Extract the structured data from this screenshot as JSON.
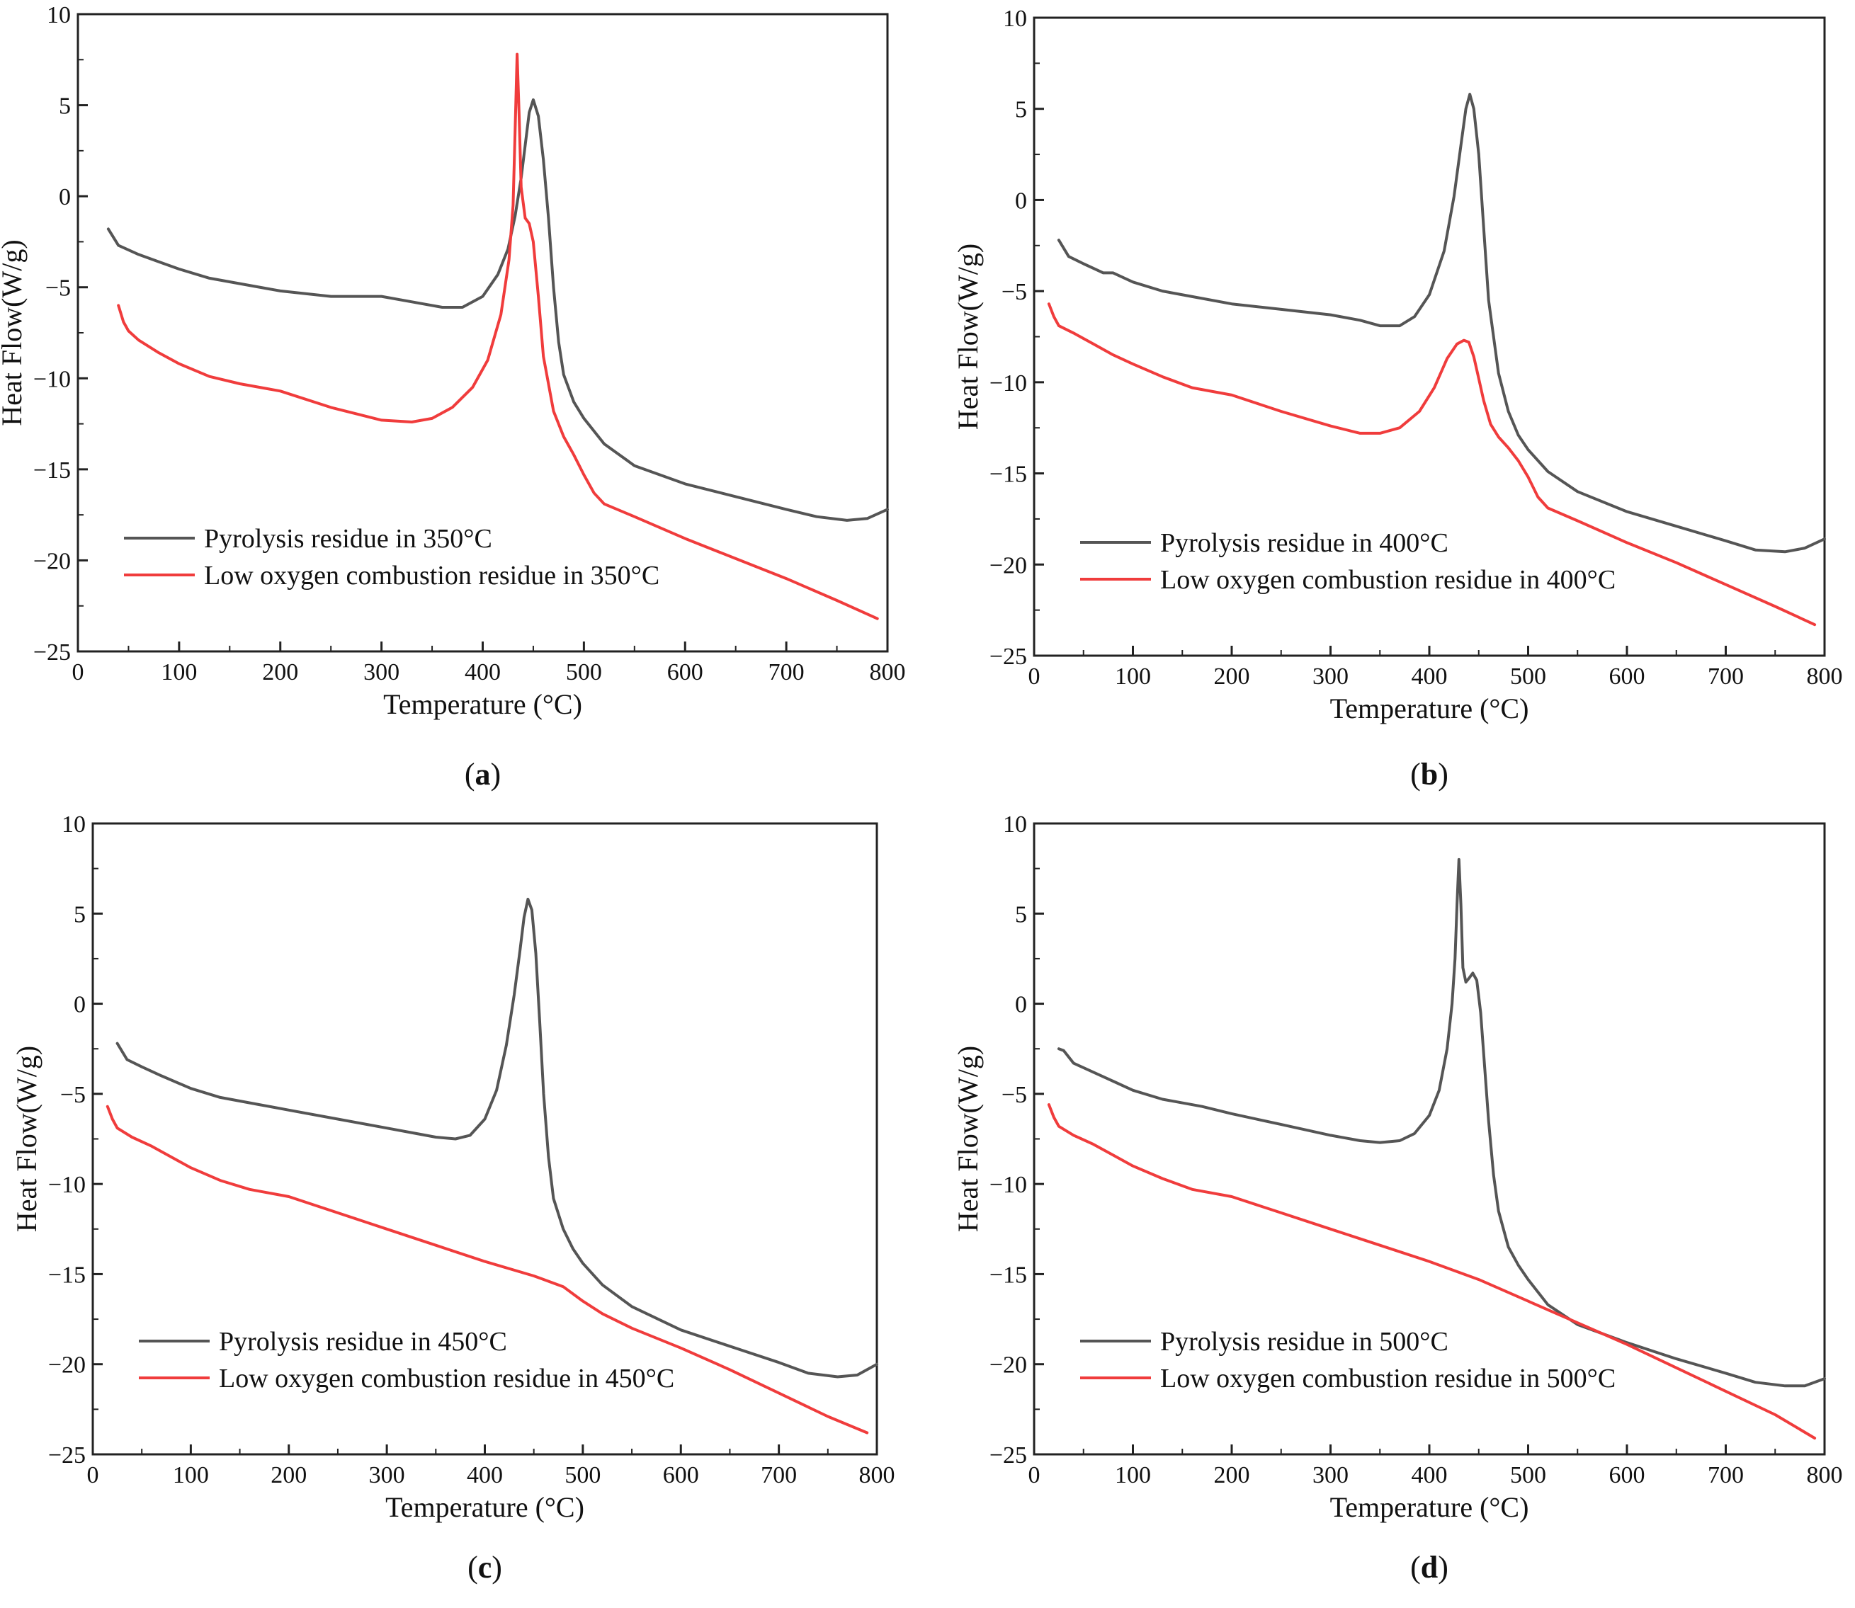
{
  "chart_data": [
    {
      "type": "line",
      "panel_label": "a",
      "xlabel": "Temperature (°C)",
      "ylabel": "Heat Flow(W/g)",
      "xlim": [
        0,
        800
      ],
      "ylim": [
        -25,
        10
      ],
      "xticks": [
        "0",
        "100",
        "200",
        "300",
        "400",
        "500",
        "600",
        "700",
        "800"
      ],
      "yticks": [
        "10",
        "5",
        "0",
        "−5",
        "−10",
        "−15",
        "−20",
        "−25"
      ],
      "legend_position": "bottom-left",
      "colors": [
        "#555555",
        "#f03c3c"
      ],
      "series": [
        {
          "name": "Pyrolysis residue in 350°C",
          "x": [
            30,
            40,
            60,
            80,
            100,
            130,
            160,
            200,
            250,
            300,
            330,
            360,
            380,
            400,
            415,
            425,
            432,
            438,
            442,
            446,
            450,
            455,
            460,
            465,
            470,
            475,
            480,
            490,
            500,
            520,
            550,
            600,
            650,
            700,
            730,
            760,
            780,
            800
          ],
          "y": [
            -1.8,
            -2.7,
            -3.2,
            -3.6,
            -4.0,
            -4.5,
            -4.8,
            -5.2,
            -5.5,
            -5.5,
            -5.8,
            -6.1,
            -6.1,
            -5.5,
            -4.3,
            -2.9,
            -1.1,
            1.0,
            2.8,
            4.6,
            5.3,
            4.4,
            2.0,
            -1.2,
            -5.0,
            -8.0,
            -9.8,
            -11.3,
            -12.2,
            -13.6,
            -14.8,
            -15.8,
            -16.5,
            -17.2,
            -17.6,
            -17.8,
            -17.7,
            -17.2
          ]
        },
        {
          "name": "Low oxygen combustion residue in 350°C",
          "x": [
            40,
            45,
            50,
            60,
            80,
            100,
            130,
            160,
            200,
            250,
            300,
            330,
            350,
            370,
            390,
            405,
            418,
            426,
            430,
            432,
            434,
            436,
            438,
            442,
            446,
            450,
            455,
            460,
            470,
            480,
            490,
            500,
            510,
            520,
            550,
            600,
            650,
            700,
            750,
            790
          ],
          "y": [
            -6.0,
            -6.9,
            -7.4,
            -7.9,
            -8.6,
            -9.2,
            -9.9,
            -10.3,
            -10.7,
            -11.6,
            -12.3,
            -12.4,
            -12.2,
            -11.6,
            -10.5,
            -9.0,
            -6.5,
            -3.5,
            -0.5,
            3.5,
            7.8,
            4.5,
            0.5,
            -1.2,
            -1.5,
            -2.5,
            -5.5,
            -8.8,
            -11.8,
            -13.2,
            -14.2,
            -15.3,
            -16.3,
            -16.9,
            -17.6,
            -18.8,
            -19.9,
            -21.0,
            -22.2,
            -23.2
          ]
        }
      ]
    },
    {
      "type": "line",
      "panel_label": "b",
      "xlabel": "Temperature (°C)",
      "ylabel": "Heat Flow(W/g)",
      "xlim": [
        0,
        800
      ],
      "ylim": [
        -25,
        10
      ],
      "xticks": [
        "0",
        "100",
        "200",
        "300",
        "400",
        "500",
        "600",
        "700",
        "800"
      ],
      "yticks": [
        "10",
        "5",
        "0",
        "−5",
        "−10",
        "−15",
        "−20",
        "−25"
      ],
      "legend_position": "bottom-left",
      "colors": [
        "#555555",
        "#f03c3c"
      ],
      "series": [
        {
          "name": "Pyrolysis residue in 400°C",
          "x": [
            25,
            35,
            50,
            70,
            80,
            100,
            130,
            160,
            200,
            250,
            300,
            330,
            350,
            370,
            385,
            400,
            415,
            425,
            432,
            437,
            441,
            445,
            450,
            455,
            460,
            470,
            480,
            490,
            500,
            520,
            550,
            600,
            650,
            700,
            730,
            760,
            780,
            800
          ],
          "y": [
            -2.2,
            -3.1,
            -3.5,
            -4.0,
            -4.0,
            -4.5,
            -5.0,
            -5.3,
            -5.7,
            -6.0,
            -6.3,
            -6.6,
            -6.9,
            -6.9,
            -6.4,
            -5.2,
            -2.8,
            0.2,
            3.0,
            5.0,
            5.8,
            5.0,
            2.5,
            -1.5,
            -5.5,
            -9.5,
            -11.6,
            -12.9,
            -13.7,
            -14.9,
            -16.0,
            -17.1,
            -17.9,
            -18.7,
            -19.2,
            -19.3,
            -19.1,
            -18.6
          ]
        },
        {
          "name": "Low oxygen combustion residue in 400°C",
          "x": [
            15,
            20,
            25,
            40,
            60,
            80,
            100,
            130,
            160,
            200,
            250,
            300,
            330,
            350,
            370,
            390,
            405,
            418,
            428,
            435,
            440,
            445,
            450,
            455,
            462,
            470,
            480,
            490,
            500,
            510,
            520,
            550,
            600,
            650,
            700,
            750,
            790
          ],
          "y": [
            -5.7,
            -6.4,
            -6.9,
            -7.3,
            -7.9,
            -8.5,
            -9.0,
            -9.7,
            -10.3,
            -10.7,
            -11.6,
            -12.4,
            -12.8,
            -12.8,
            -12.5,
            -11.6,
            -10.3,
            -8.7,
            -7.9,
            -7.7,
            -7.8,
            -8.6,
            -9.8,
            -11.0,
            -12.3,
            -13.0,
            -13.6,
            -14.3,
            -15.2,
            -16.3,
            -16.9,
            -17.6,
            -18.8,
            -19.9,
            -21.1,
            -22.3,
            -23.3
          ]
        }
      ]
    },
    {
      "type": "line",
      "panel_label": "c",
      "xlabel": "Temperature (°C)",
      "ylabel": "Heat Flow(W/g)",
      "xlim": [
        0,
        800
      ],
      "ylim": [
        -25,
        10
      ],
      "xticks": [
        "0",
        "100",
        "200",
        "300",
        "400",
        "500",
        "600",
        "700",
        "800"
      ],
      "yticks": [
        "10",
        "5",
        "0",
        "−5",
        "−10",
        "−15",
        "−20",
        "−25"
      ],
      "legend_position": "bottom-left",
      "colors": [
        "#555555",
        "#f03c3c"
      ],
      "series": [
        {
          "name": "Pyrolysis residue in 450°C",
          "x": [
            25,
            35,
            50,
            70,
            100,
            130,
            170,
            200,
            250,
            300,
            330,
            350,
            370,
            385,
            400,
            412,
            422,
            430,
            436,
            440,
            444,
            448,
            452,
            456,
            460,
            465,
            470,
            480,
            490,
            500,
            520,
            550,
            600,
            650,
            700,
            730,
            760,
            780,
            800
          ],
          "y": [
            -2.2,
            -3.1,
            -3.5,
            -4.0,
            -4.7,
            -5.2,
            -5.6,
            -5.9,
            -6.4,
            -6.9,
            -7.2,
            -7.4,
            -7.5,
            -7.3,
            -6.4,
            -4.8,
            -2.3,
            0.5,
            3.0,
            4.8,
            5.8,
            5.2,
            2.8,
            -1.0,
            -5.0,
            -8.5,
            -10.8,
            -12.5,
            -13.6,
            -14.4,
            -15.6,
            -16.8,
            -18.1,
            -19.0,
            -19.9,
            -20.5,
            -20.7,
            -20.6,
            -20.0
          ]
        },
        {
          "name": "Low oxygen combustion residue in 450°C",
          "x": [
            15,
            20,
            25,
            40,
            60,
            80,
            100,
            130,
            160,
            200,
            250,
            300,
            350,
            400,
            450,
            480,
            500,
            520,
            550,
            600,
            650,
            700,
            750,
            790
          ],
          "y": [
            -5.7,
            -6.4,
            -6.9,
            -7.4,
            -7.9,
            -8.5,
            -9.1,
            -9.8,
            -10.3,
            -10.7,
            -11.6,
            -12.5,
            -13.4,
            -14.3,
            -15.1,
            -15.7,
            -16.5,
            -17.2,
            -18.0,
            -19.1,
            -20.3,
            -21.6,
            -22.9,
            -23.8
          ]
        }
      ]
    },
    {
      "type": "line",
      "panel_label": "d",
      "xlabel": "Temperature (°C)",
      "ylabel": "Heat Flow(W/g)",
      "xlim": [
        0,
        800
      ],
      "ylim": [
        -25,
        10
      ],
      "xticks": [
        "0",
        "100",
        "200",
        "300",
        "400",
        "500",
        "600",
        "700",
        "800"
      ],
      "yticks": [
        "10",
        "5",
        "0",
        "−5",
        "−10",
        "−15",
        "−20",
        "−25"
      ],
      "legend_position": "bottom-left",
      "colors": [
        "#555555",
        "#f03c3c"
      ],
      "series": [
        {
          "name": "Pyrolysis residue in 500°C",
          "x": [
            25,
            30,
            40,
            60,
            80,
            100,
            130,
            170,
            200,
            250,
            300,
            330,
            350,
            370,
            385,
            400,
            410,
            418,
            423,
            426,
            428,
            430,
            432,
            434,
            437,
            440,
            444,
            448,
            452,
            456,
            460,
            465,
            470,
            480,
            490,
            500,
            520,
            550,
            600,
            650,
            700,
            730,
            760,
            780,
            800
          ],
          "y": [
            -2.5,
            -2.6,
            -3.3,
            -3.8,
            -4.3,
            -4.8,
            -5.3,
            -5.7,
            -6.1,
            -6.7,
            -7.3,
            -7.6,
            -7.7,
            -7.6,
            -7.2,
            -6.2,
            -4.8,
            -2.5,
            0.0,
            2.5,
            5.5,
            8.0,
            5.5,
            2.0,
            1.2,
            1.4,
            1.7,
            1.3,
            -0.5,
            -3.5,
            -6.5,
            -9.5,
            -11.5,
            -13.5,
            -14.5,
            -15.3,
            -16.7,
            -17.8,
            -18.8,
            -19.7,
            -20.5,
            -21.0,
            -21.2,
            -21.2,
            -20.8
          ]
        },
        {
          "name": "Low oxygen combustion residue in 500°C",
          "x": [
            15,
            20,
            25,
            40,
            60,
            80,
            100,
            130,
            160,
            200,
            250,
            300,
            350,
            400,
            450,
            500,
            550,
            600,
            650,
            700,
            750,
            790
          ],
          "y": [
            -5.6,
            -6.3,
            -6.8,
            -7.3,
            -7.8,
            -8.4,
            -9.0,
            -9.7,
            -10.3,
            -10.7,
            -11.6,
            -12.5,
            -13.4,
            -14.3,
            -15.3,
            -16.5,
            -17.7,
            -18.9,
            -20.2,
            -21.5,
            -22.8,
            -24.1
          ]
        }
      ]
    }
  ]
}
